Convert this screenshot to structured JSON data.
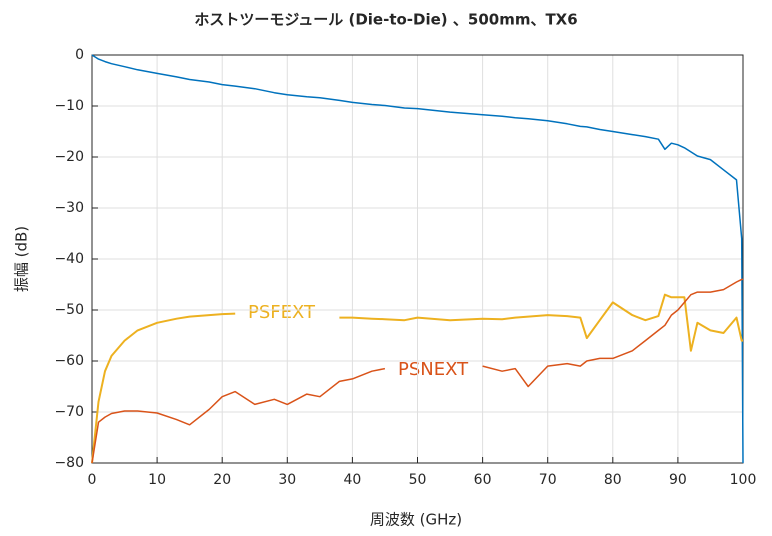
{
  "chart_data": {
    "type": "line",
    "title": "ホストツーモジュール (Die-to-Die) 、500mm、TX6",
    "x_label": "周波数 (GHz)",
    "y_label": "振幅 (dB)",
    "xlim": [
      0,
      100
    ],
    "ylim": [
      -80,
      0
    ],
    "xticks": [
      0,
      10,
      20,
      30,
      40,
      50,
      60,
      70,
      80,
      90,
      100
    ],
    "yticks": [
      0,
      {
        "value": -10,
        "label": "−10"
      },
      {
        "value": -20,
        "label": "−20"
      },
      {
        "value": -30,
        "label": "−30"
      },
      {
        "value": -40,
        "label": "−40"
      },
      {
        "value": -50,
        "label": "−50"
      },
      {
        "value": -60,
        "label": "−60"
      },
      {
        "value": -70,
        "label": "−70"
      },
      {
        "value": -80,
        "label": "−80"
      }
    ],
    "grid": true,
    "x": [
      0,
      1,
      2,
      3,
      5,
      7,
      10,
      13,
      15,
      18,
      20,
      22,
      25,
      28,
      30,
      33,
      35,
      38,
      40,
      43,
      45,
      48,
      50,
      55,
      60,
      63,
      65,
      67,
      70,
      73,
      75,
      76,
      78,
      80,
      83,
      85,
      87,
      88,
      89,
      90,
      91,
      92,
      93,
      95,
      97,
      99,
      99.8,
      100
    ],
    "series": [
      {
        "color": "#0072bd",
        "values": [
          0,
          -0.8,
          -1.3,
          -1.7,
          -2.3,
          -2.9,
          -3.6,
          -4.3,
          -4.8,
          -5.3,
          -5.8,
          -6.1,
          -6.6,
          -7.4,
          -7.8,
          -8.2,
          -8.4,
          -8.9,
          -9.3,
          -9.7,
          -9.9,
          -10.4,
          -10.5,
          -11.2,
          -11.7,
          -12.0,
          -12.3,
          -12.5,
          -12.9,
          -13.5,
          -14.0,
          -14.1,
          -14.6,
          -15.0,
          -15.6,
          -16.0,
          -16.5,
          -18.5,
          -17.3,
          -17.6,
          -18.2,
          -19.0,
          -19.8,
          -20.5,
          -22.5,
          -24.5,
          -36,
          -80
        ]
      },
      {
        "name": "PSFEXT",
        "color": "#edb120",
        "values": [
          -80,
          -68,
          -62,
          -59,
          -56,
          -54,
          -52.5,
          -51.7,
          -51.3,
          -51,
          -50.8,
          -50.7,
          null,
          null,
          null,
          null,
          null,
          -51.5,
          -51.5,
          -51.7,
          -51.8,
          -52,
          -51.5,
          -52,
          -51.7,
          -51.8,
          -51.5,
          -51.3,
          -51,
          -51.2,
          -51.5,
          -55.5,
          -52,
          -48.5,
          -51,
          -52,
          -51.2,
          -47,
          -47.5,
          -47.5,
          -47.5,
          -58,
          -52.5,
          -54,
          -54.5,
          -51.5,
          -56,
          -56
        ]
      },
      {
        "name": "PSNEXT",
        "color": "#d95319",
        "values": [
          -80,
          -72,
          -71,
          -70.3,
          -69.8,
          -69.8,
          -70.2,
          -71.5,
          -72.5,
          -69.5,
          -67,
          -66,
          -68.5,
          -67.5,
          -68.5,
          -66.5,
          -67,
          -64,
          -63.5,
          -62,
          -61.5,
          null,
          null,
          null,
          -61,
          -62,
          -61.5,
          -65,
          -61,
          -60.5,
          -61,
          -60,
          -59.5,
          -59.5,
          -58,
          -56,
          -54,
          -53,
          -51,
          -50,
          -48.5,
          -47,
          -46.5,
          -46.5,
          -46,
          -44.5,
          -44,
          -44
        ]
      }
    ]
  }
}
